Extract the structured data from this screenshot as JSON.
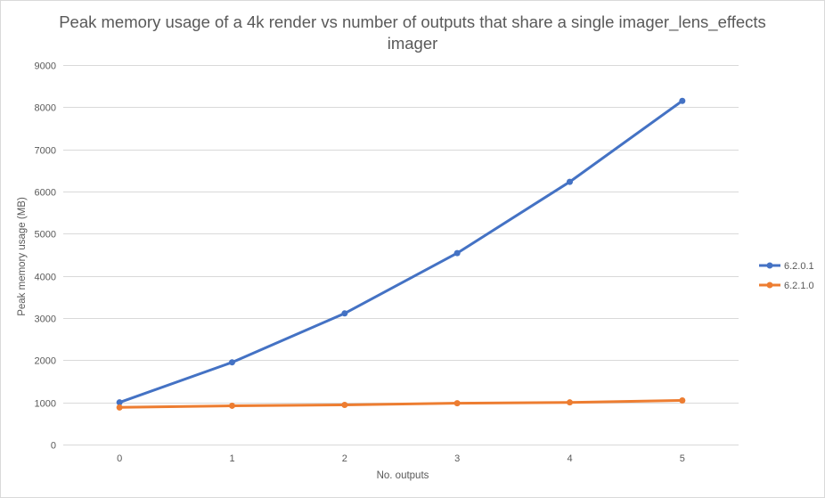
{
  "chart_data": {
    "type": "line",
    "title_lines": [
      "Peak memory usage of a  4k render vs number of outputs that share a single imager_lens_effects",
      "imager"
    ],
    "xlabel": "No. outputs",
    "ylabel": "Peak memory  usage (MB)",
    "x": [
      0,
      1,
      2,
      3,
      4,
      5
    ],
    "ylim": [
      0,
      9000
    ],
    "yticks": [
      0,
      1000,
      2000,
      3000,
      4000,
      5000,
      6000,
      7000,
      8000,
      9000
    ],
    "grid": true,
    "legend_position": "right",
    "series": [
      {
        "name": "6.2.0.1",
        "color": "#4472c4",
        "values": [
          1000,
          1950,
          3110,
          4540,
          6230,
          8150
        ]
      },
      {
        "name": "6.2.1.0",
        "color": "#ed7d31",
        "values": [
          880,
          920,
          940,
          980,
          1000,
          1045
        ]
      }
    ]
  }
}
